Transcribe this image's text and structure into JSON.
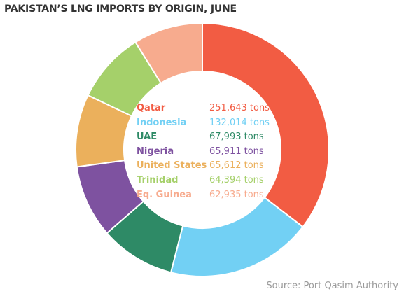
{
  "title": "PAKISTAN’S LNG IMPORTS BY ORIGIN, JUNE",
  "source": "Source: Port Qasim Authority",
  "chart_data": {
    "type": "pie",
    "style": "donut",
    "unit": "tons",
    "categories": [
      "Qatar",
      "Indonesia",
      "UAE",
      "Nigeria",
      "United States",
      "Trinidad",
      "Eq. Guinea"
    ],
    "values": [
      251643,
      132014,
      67993,
      65911,
      65612,
      64394,
      62935
    ],
    "value_labels": [
      "251,643 tons",
      "132,014 tons",
      "67,993 tons",
      "65,911 tons",
      "65,612 tons",
      "64,394 tons",
      "62,935 tons"
    ],
    "colors": [
      "#f25c43",
      "#72d0f4",
      "#2e8a66",
      "#7e52a0",
      "#ebb05c",
      "#a5d06a",
      "#f7ab8e"
    ],
    "legend_placement": "center"
  }
}
